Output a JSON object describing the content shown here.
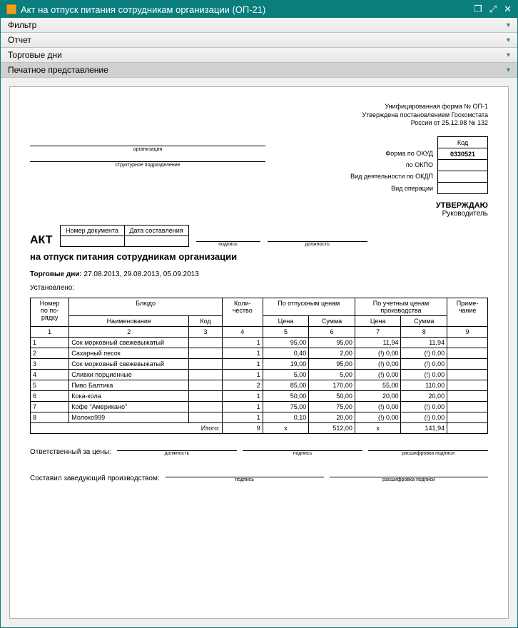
{
  "window": {
    "title": "Акт на отпуск питания сотрудникам организации (ОП-21)"
  },
  "panels": {
    "filter": "Фильтр",
    "report": "Отчет",
    "tradeDays": "Торговые дни",
    "printView": "Печатное представление"
  },
  "form": {
    "unified_l1": "Унифицированная форма № ОП-1",
    "unified_l2": "Утверждена постановлением Госкомстата",
    "unified_l3": "России от 25.12.98 № 132",
    "code_header": "Код",
    "okud_label": "Форма по ОКУД",
    "okud_value": "0330521",
    "okpo_label": "по ОКПО",
    "okdp_label": "Вид деятельности по ОКДП",
    "oper_label": "Вид операции",
    "org_caption": "организация",
    "dept_caption": "структурное подразделение",
    "approve_title": "УТВЕРЖДАЮ",
    "approve_role": "Руководитель",
    "approve_pos_cap": "должность",
    "sig_cap": "подпись",
    "decode_cap": "расшифровка подписи",
    "akt": "АКТ",
    "docnum_h": "Номер документа",
    "docdate_h": "Дата составления",
    "subtitle": "на отпуск питания сотрудникам организации",
    "trade_days_label": "Торговые дни:",
    "trade_days_value": "27.08.2013, 29.08.2013, 05.09.2013",
    "ustanovleno": "Установлено:",
    "resp_prices": "Ответственный за цены:",
    "sost_zav": "Составил заведующий производством:"
  },
  "table": {
    "headers": {
      "num1": "Номер",
      "num2": "по по-",
      "num3": "рядку",
      "dish": "Блюдо",
      "name": "Наименование",
      "code": "Код",
      "qty1": "Коли-",
      "qty2": "чество",
      "sale": "По отпускным ценам",
      "acct1": "По учетным ценам",
      "acct2": "производства",
      "price": "Цена",
      "sum": "Сумма",
      "note1": "Приме-",
      "note2": "чание"
    },
    "colnums": [
      "1",
      "2",
      "3",
      "4",
      "5",
      "6",
      "7",
      "8",
      "9"
    ],
    "rows": [
      {
        "n": "1",
        "name": "Сок морковный свежевыжатый",
        "code": "",
        "qty": "1",
        "p1": "95,00",
        "s1": "95,00",
        "p2": "11,94",
        "s2": "11,94",
        "note": ""
      },
      {
        "n": "2",
        "name": "Сахарный песок",
        "code": "",
        "qty": "1",
        "p1": "0,40",
        "s1": "2,00",
        "p2": "(!) 0,00",
        "s2": "(!) 0,00",
        "note": ""
      },
      {
        "n": "3",
        "name": "Сок морковный свежевыжатый",
        "code": "",
        "qty": "1",
        "p1": "19,00",
        "s1": "95,00",
        "p2": "(!) 0,00",
        "s2": "(!) 0,00",
        "note": ""
      },
      {
        "n": "4",
        "name": "Сливки порционные",
        "code": "",
        "qty": "1",
        "p1": "5,00",
        "s1": "5,00",
        "p2": "(!) 0,00",
        "s2": "(!) 0,00",
        "note": ""
      },
      {
        "n": "5",
        "name": "Пиво Балтика",
        "code": "",
        "qty": "2",
        "p1": "85,00",
        "s1": "170,00",
        "p2": "55,00",
        "s2": "110,00",
        "note": ""
      },
      {
        "n": "6",
        "name": "Кока-кола",
        "code": "",
        "qty": "1",
        "p1": "50,00",
        "s1": "50,00",
        "p2": "20,00",
        "s2": "20,00",
        "note": ""
      },
      {
        "n": "7",
        "name": "Кофе \"Американо\"",
        "code": "",
        "qty": "1",
        "p1": "75,00",
        "s1": "75,00",
        "p2": "(!) 0,00",
        "s2": "(!) 0,00",
        "note": ""
      },
      {
        "n": "8",
        "name": "Молоко999",
        "code": "",
        "qty": "1",
        "p1": "0,10",
        "s1": "20,00",
        "p2": "(!) 0,00",
        "s2": "(!) 0,00",
        "note": ""
      }
    ],
    "totals": {
      "label": "Итого:",
      "qty": "9",
      "p1": "x",
      "s1": "512,00",
      "p2": "x",
      "s2": "141,94"
    }
  }
}
